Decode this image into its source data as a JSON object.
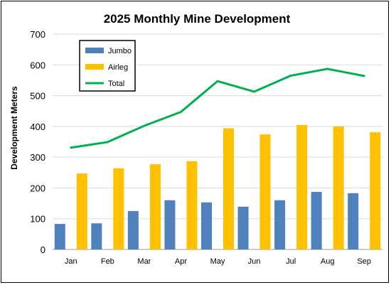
{
  "chart_data": {
    "type": "bar",
    "title": "2025 Monthly Mine Development",
    "xlabel": "",
    "ylabel": "Development Meters",
    "ylim": [
      0,
      700
    ],
    "yticks": [
      0,
      100,
      200,
      300,
      400,
      500,
      600,
      700
    ],
    "grid": true,
    "legend_position": "top-left",
    "categories": [
      "Jan",
      "Feb",
      "Mar",
      "Apr",
      "May",
      "Jun",
      "Jul",
      "Aug",
      "Sep"
    ],
    "series": [
      {
        "name": "Jumbo",
        "type": "bar",
        "color": "#4f81bd",
        "values": [
          83,
          85,
          125,
          160,
          153,
          139,
          160,
          187,
          183
        ]
      },
      {
        "name": "Airleg",
        "type": "bar",
        "color": "#ffc000",
        "values": [
          247,
          264,
          277,
          287,
          394,
          374,
          405,
          400,
          381
        ]
      },
      {
        "name": "Total",
        "type": "line",
        "color": "#00b050",
        "values": [
          331,
          349,
          402,
          447,
          547,
          513,
          565,
          587,
          564
        ]
      }
    ]
  }
}
